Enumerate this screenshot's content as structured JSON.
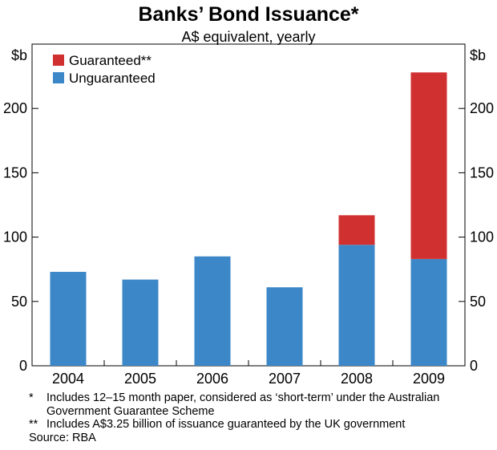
{
  "chart_data": {
    "type": "bar",
    "stacked": true,
    "title": "Banks’ Bond Issuance*",
    "subtitle": "A$ equivalent, yearly",
    "ylabel_left": "$b",
    "ylabel_right": "$b",
    "ylim": [
      0,
      250
    ],
    "yticks": [
      0,
      50,
      100,
      150,
      200
    ],
    "categories": [
      "2004",
      "2005",
      "2006",
      "2007",
      "2008",
      "2009"
    ],
    "series": [
      {
        "name": "Unguaranteed",
        "color": "#3c87c8",
        "values": [
          73,
          67,
          85,
          61,
          94,
          83
        ]
      },
      {
        "name": "Guaranteed**",
        "color": "#d03030",
        "values": [
          0,
          0,
          0,
          0,
          23,
          145
        ]
      }
    ],
    "legend": "top-left",
    "grid": false
  },
  "footnotes": [
    {
      "mark": "*",
      "text": "Includes 12–15 month paper, considered as ‘short-term’ under the Australian Government Guarantee Scheme"
    },
    {
      "mark": "**",
      "text": "Includes A$3.25 billion of issuance guaranteed by the UK government"
    }
  ],
  "source": "Source: RBA"
}
